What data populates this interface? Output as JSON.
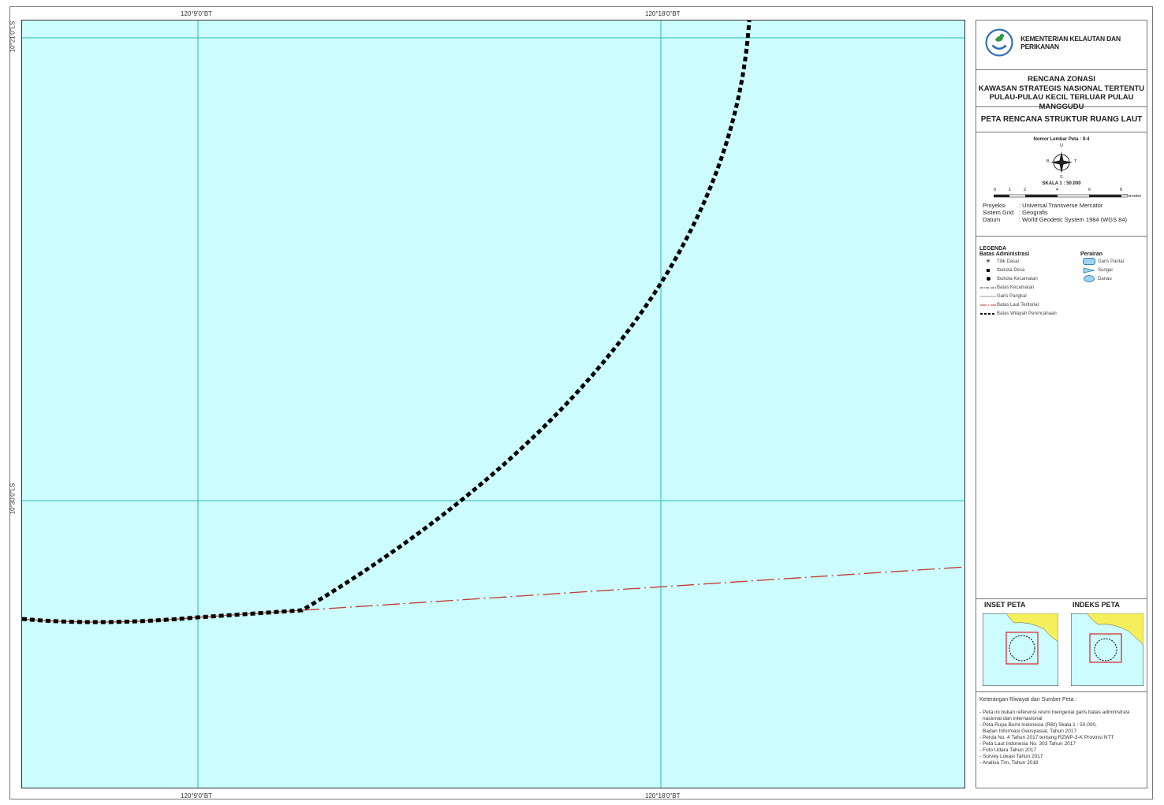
{
  "map": {
    "top_coords": [
      "120°9'0\"BT",
      "120°18'0\"BT"
    ],
    "bottom_coords": [
      "120°9'0\"BT",
      "120°18'0\"BT"
    ],
    "left_coords": [
      "10°21'0\"LS",
      "10°30'0\"LS"
    ],
    "colors": {
      "sea": "#ccfcfe",
      "grid": "#2ab7c0",
      "boundary": "#000000",
      "territorial": "#c0392b"
    }
  },
  "panel": {
    "ministry": "KEMENTERIAN KELAUTAN DAN PERIKANAN",
    "title_lines": [
      "RENCANA ZONASI",
      "KAWASAN STRATEGIS NASIONAL TERTENTU",
      "PULAU-PULAU KECIL TERLUAR PULAU MANGGUDU"
    ],
    "map_title": "PETA RENCANA STRUKTUR RUANG LAUT",
    "sheet_number": "Nomor Lembar Peta : II-4",
    "compass": {
      "n": "U",
      "s": "S",
      "e": "T",
      "w": "B"
    },
    "scale": "SKALA   1 : 50.000",
    "scale_ticks": [
      "0",
      "1",
      "2",
      "4",
      "6",
      "8"
    ],
    "scale_unit": "Kilometer",
    "projection": [
      {
        "key": "Proyeksi",
        "value": ": Universal Transverse Mercator"
      },
      {
        "key": "Sistem Grid",
        "value": ": Geografis"
      },
      {
        "key": "Datum",
        "value": ": World Geodetic System 1984 (WGS 84)"
      }
    ],
    "legend_title": "LEGENDA",
    "legend_admin_title": "Batas Administrasi",
    "legend_admin": [
      "Titik Dasar",
      "Ibukota Desa",
      "Ibukota Kecamatan",
      "Batas Kecamatan",
      "Garis Pangkal",
      "Batas Laut Teritorial",
      "Batas Wilayah Perencanaan"
    ],
    "legend_water_title": "Perairan",
    "legend_water": [
      "Garis Pantai",
      "Sungai",
      "Danau"
    ],
    "inset_title": "INSET PETA",
    "index_title": "INDEKS PETA",
    "notes_title": "Keterangan Riwayat dan Sumber Peta :",
    "notes": [
      "- Peta ini bukan referensi resmi mengenai garis batas administrasi",
      "  nasional dan internasional",
      "- Peta Rupa Bumi Indonesia (RBI) Skala 1 : 50.000,",
      "  Badan Informasi Geospasial, Tahun 2017",
      "- Perda No. 4 Tahun 2017 tentang RZWP-3-K Provinsi NTT",
      "- Peta Laut Indonesia No. 303 Tahun 2017",
      "- Foto Udara Tahun 2017",
      "- Survey Lokasi Tahun 2017",
      "- Analisa Tim, Tahun 2018"
    ]
  }
}
